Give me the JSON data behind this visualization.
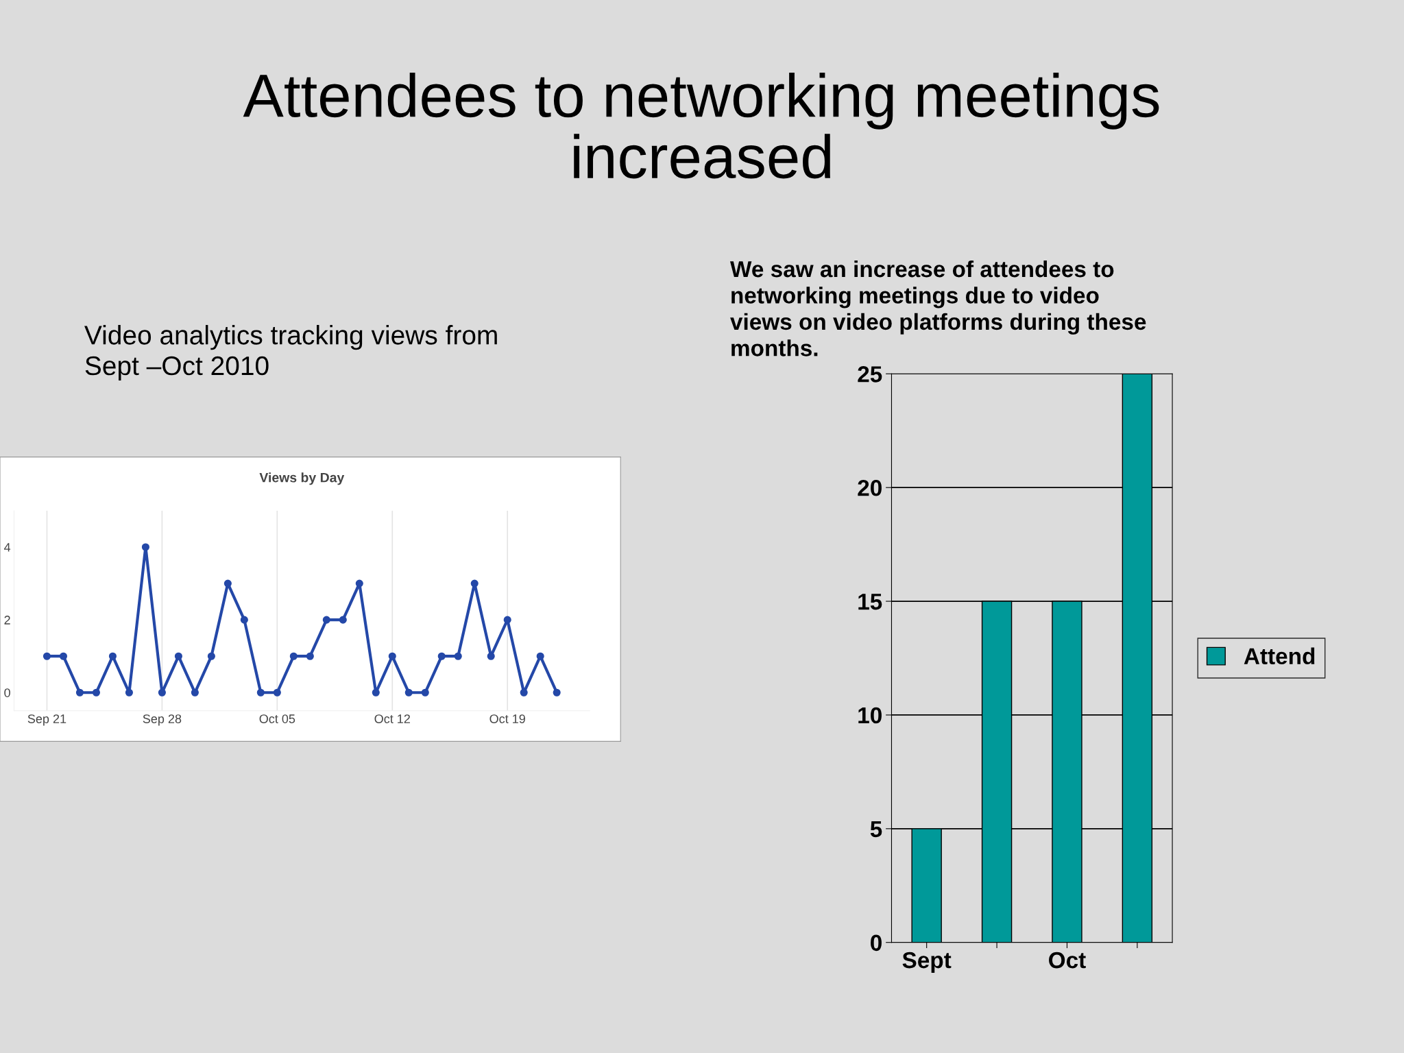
{
  "chart_data": [
    {
      "type": "other",
      "title": "Attendees to networking meetings\nincreased",
      "annotations": [
        "Video analytics tracking views from\nSept –Oct 2010",
        "We saw an increase of attendees to\nnetworking meetings due to video\nviews on video platforms during these\nmonths."
      ]
    },
    {
      "type": "line",
      "title": "Views by Day",
      "x": [
        "2010-09-21",
        "2010-09-22",
        "2010-09-23",
        "2010-09-24",
        "2010-09-25",
        "2010-09-26",
        "2010-09-27",
        "2010-09-28",
        "2010-09-29",
        "2010-09-30",
        "2010-10-01",
        "2010-10-02",
        "2010-10-03",
        "2010-10-04",
        "2010-10-05",
        "2010-10-06",
        "2010-10-07",
        "2010-10-08",
        "2010-10-09",
        "2010-10-10",
        "2010-10-11",
        "2010-10-12",
        "2010-10-13",
        "2010-10-14",
        "2010-10-15",
        "2010-10-16",
        "2010-10-17",
        "2010-10-18",
        "2010-10-19",
        "2010-10-20",
        "2010-10-21",
        "2010-10-22"
      ],
      "series": [
        {
          "color": "#2448a8",
          "values": [
            1,
            1,
            0,
            0,
            1,
            0,
            4,
            0,
            1,
            0,
            1,
            3,
            2,
            0,
            0,
            1,
            1,
            2,
            2,
            3,
            0,
            1,
            0,
            0,
            1,
            1,
            3,
            1,
            2,
            0,
            1,
            0
          ]
        }
      ],
      "xlim": [
        "2010-09-19",
        "2010-10-24"
      ],
      "xticks": [
        {
          "value": "2010-09-21",
          "label": "Sep 21"
        },
        {
          "value": "2010-09-28",
          "label": "Sep 28"
        },
        {
          "value": "2010-10-05",
          "label": "Oct 05"
        },
        {
          "value": "2010-10-12",
          "label": "Oct 12"
        },
        {
          "value": "2010-10-19",
          "label": "Oct 19"
        }
      ],
      "ylim": [
        -0.5,
        5
      ],
      "yticks": [
        0,
        2,
        4
      ],
      "grid": "x",
      "marker": "circle",
      "line_style": "solid"
    },
    {
      "type": "bar",
      "categories": [
        "Sept",
        null,
        "Oct",
        null
      ],
      "series": [
        {
          "name": "Attend",
          "color": "#009999",
          "values": [
            5,
            15,
            15,
            25
          ]
        }
      ],
      "ylim": [
        0,
        25
      ],
      "yticks": [
        0,
        5,
        10,
        15,
        20,
        25
      ],
      "grid": "y",
      "legend": "right"
    }
  ]
}
